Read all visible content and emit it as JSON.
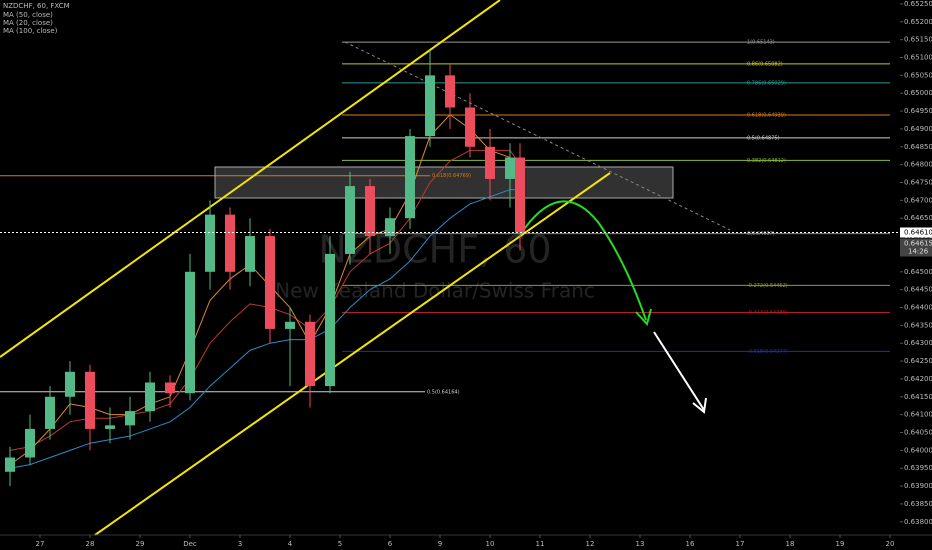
{
  "chart_data": {
    "type": "candlestick",
    "legend": [
      "NZDCHF, 60, FXCM",
      "MA (50, close)",
      "MA (20, close)",
      "MA (100, close)"
    ],
    "watermark": "NZDCHF, 60",
    "watermark_subtitle": "New Zealand Dollar/Swiss Franc",
    "x": [
      -0.6,
      -0.2,
      0.2,
      0.6,
      1.0,
      1.4,
      1.8,
      2.2,
      2.6,
      3.0,
      3.4,
      3.8,
      4.2,
      4.6,
      5.0,
      5.4,
      5.8,
      6.2,
      6.6,
      7.0,
      7.4,
      7.8,
      8.2,
      8.6,
      9.0,
      9.4,
      9.6
    ],
    "candles": {
      "open": [
        0.6394,
        0.6398,
        0.6406,
        0.6415,
        0.6422,
        0.6406,
        0.6407,
        0.6411,
        0.6419,
        0.6416,
        0.645,
        0.6466,
        0.645,
        0.646,
        0.6434,
        0.6436,
        0.6418,
        0.6455,
        0.6474,
        0.646,
        0.6465,
        0.6488,
        0.6505,
        0.6496,
        0.6485,
        0.6476,
        0.6482
      ],
      "high": [
        0.6401,
        0.641,
        0.6418,
        0.6425,
        0.6424,
        0.6412,
        0.6415,
        0.6422,
        0.6421,
        0.6455,
        0.647,
        0.6468,
        0.6465,
        0.6462,
        0.644,
        0.6438,
        0.646,
        0.6478,
        0.6476,
        0.6468,
        0.649,
        0.6512,
        0.6508,
        0.65,
        0.649,
        0.6486,
        0.6486
      ],
      "low": [
        0.639,
        0.6396,
        0.6403,
        0.641,
        0.64,
        0.6402,
        0.6403,
        0.6408,
        0.6412,
        0.6414,
        0.6445,
        0.6445,
        0.6446,
        0.643,
        0.6418,
        0.6412,
        0.6416,
        0.6452,
        0.6455,
        0.6455,
        0.6462,
        0.6485,
        0.649,
        0.6482,
        0.647,
        0.6468,
        0.6456
      ],
      "close": [
        0.6398,
        0.6406,
        0.6415,
        0.6422,
        0.6406,
        0.6407,
        0.6411,
        0.6419,
        0.6416,
        0.645,
        0.6466,
        0.645,
        0.646,
        0.6434,
        0.6436,
        0.6418,
        0.6455,
        0.6474,
        0.646,
        0.6465,
        0.6488,
        0.6505,
        0.6496,
        0.6485,
        0.6476,
        0.6482,
        0.6461
      ],
      "up_color": "#53b987",
      "down_color": "#eb4d5c"
    },
    "series": [
      {
        "name": "MA (50, close)",
        "color": "#c0392b",
        "values": [
          0.64,
          0.6401,
          0.6404,
          0.6408,
          0.6409,
          0.6409,
          0.641,
          0.6411,
          0.6413,
          0.642,
          0.643,
          0.6436,
          0.6441,
          0.644,
          0.6438,
          0.6434,
          0.644,
          0.645,
          0.6455,
          0.6458,
          0.6465,
          0.6475,
          0.6481,
          0.6484,
          0.6484,
          0.6484,
          0.648
        ]
      },
      {
        "name": "MA (20, close)",
        "color": "#e08a2c",
        "values": [
          0.6396,
          0.64,
          0.6406,
          0.6413,
          0.6412,
          0.641,
          0.641,
          0.6413,
          0.6415,
          0.6428,
          0.6442,
          0.6448,
          0.6452,
          0.6446,
          0.644,
          0.643,
          0.644,
          0.6455,
          0.646,
          0.6462,
          0.6472,
          0.6488,
          0.6494,
          0.649,
          0.6484,
          0.6482,
          0.6474
        ]
      },
      {
        "name": "MA (100, close)",
        "color": "#2a8cc8",
        "values": [
          0.6395,
          0.6396,
          0.6398,
          0.64,
          0.6402,
          0.6403,
          0.6404,
          0.6406,
          0.6408,
          0.6412,
          0.6418,
          0.6423,
          0.6428,
          0.643,
          0.6431,
          0.6431,
          0.6434,
          0.644,
          0.6445,
          0.6448,
          0.6453,
          0.646,
          0.6465,
          0.6469,
          0.6471,
          0.6473,
          0.6473
        ]
      }
    ],
    "fib_levels": [
      {
        "label": "1(0.65143)",
        "value": 0.65143,
        "color": "#9a9a9a"
      },
      {
        "label": "0.86(0.65082)",
        "value": 0.65082,
        "color": "#c8c81e"
      },
      {
        "label": "0.786(0.65029)",
        "value": 0.65029,
        "color": "#2a9d9d"
      },
      {
        "label": "0.618(0.64939)",
        "value": 0.64939,
        "color": "#d87a1a"
      },
      {
        "label": "0.5(0.64875)",
        "value": 0.64875,
        "color": "#cfcfcf"
      },
      {
        "label": "0.382(0.64812)",
        "value": 0.64812,
        "color": "#8bbb3a"
      },
      {
        "label": "0(0.64607)",
        "value": 0.64607,
        "color": "#8a8a8a"
      },
      {
        "label": "-0.272(0.64462)",
        "value": 0.64462,
        "color": "#9a9a20"
      },
      {
        "label": "-0.414(0.64386)",
        "value": 0.64386,
        "color": "#b02020"
      },
      {
        "label": "-0.618(0.64277)",
        "value": 0.64277,
        "color": "#2030a0"
      }
    ],
    "side_levels": [
      {
        "label": "0.618(0.64769)",
        "value": 0.64769,
        "color": "#d87a1a"
      },
      {
        "label": "0.5(0.64164)",
        "value": 0.64164,
        "color": "#cfcfcf"
      }
    ],
    "current_price": {
      "value": 0.6461,
      "label": "0.64610"
    },
    "bid_label": "0.64615",
    "countdown": "14:26",
    "xlim": [
      -0.8,
      17.2
    ],
    "xticks": [
      {
        "value": 0,
        "label": "27"
      },
      {
        "value": 1,
        "label": "28"
      },
      {
        "value": 2,
        "label": "29"
      },
      {
        "value": 3,
        "label": "Dec"
      },
      {
        "value": 4,
        "label": "3"
      },
      {
        "value": 5,
        "label": "4"
      },
      {
        "value": 6,
        "label": "5"
      },
      {
        "value": 7,
        "label": "6"
      },
      {
        "value": 8,
        "label": "9"
      },
      {
        "value": 9,
        "label": "10"
      },
      {
        "value": 10,
        "label": "11"
      },
      {
        "value": 11,
        "label": "12"
      },
      {
        "value": 12,
        "label": "13"
      },
      {
        "value": 13,
        "label": "16"
      },
      {
        "value": 14,
        "label": "17"
      },
      {
        "value": 15,
        "label": "18"
      },
      {
        "value": 16,
        "label": "19"
      },
      {
        "value": 17,
        "label": "20"
      }
    ],
    "ylim": [
      0.63763,
      0.65261
    ],
    "yticks": [
      {
        "value": 0.638,
        "label": "0.63800"
      },
      {
        "value": 0.6385,
        "label": "0.63850"
      },
      {
        "value": 0.639,
        "label": "0.63900"
      },
      {
        "value": 0.6395,
        "label": "0.63950"
      },
      {
        "value": 0.64,
        "label": "0.64000"
      },
      {
        "value": 0.6405,
        "label": "0.64050"
      },
      {
        "value": 0.641,
        "label": "0.64100"
      },
      {
        "value": 0.6415,
        "label": "0.64150"
      },
      {
        "value": 0.642,
        "label": "0.64200"
      },
      {
        "value": 0.6425,
        "label": "0.64250"
      },
      {
        "value": 0.643,
        "label": "0.64300"
      },
      {
        "value": 0.6435,
        "label": "0.64350"
      },
      {
        "value": 0.644,
        "label": "0.64400"
      },
      {
        "value": 0.6445,
        "label": "0.64450"
      },
      {
        "value": 0.645,
        "label": "0.64500"
      },
      {
        "value": 0.6455,
        "label": "0.64550"
      },
      {
        "value": 0.646,
        "label": "0.64600"
      },
      {
        "value": 0.6465,
        "label": "0.64650"
      },
      {
        "value": 0.647,
        "label": "0.64700"
      },
      {
        "value": 0.6475,
        "label": "0.64750"
      },
      {
        "value": 0.648,
        "label": "0.64800"
      },
      {
        "value": 0.6485,
        "label": "0.64850"
      },
      {
        "value": 0.649,
        "label": "0.64900"
      },
      {
        "value": 0.6495,
        "label": "0.64950"
      },
      {
        "value": 0.65,
        "label": "0.65000"
      },
      {
        "value": 0.6505,
        "label": "0.65050"
      },
      {
        "value": 0.651,
        "label": "0.65100"
      },
      {
        "value": 0.6515,
        "label": "0.65150"
      },
      {
        "value": 0.652,
        "label": "0.65200"
      },
      {
        "value": 0.6525,
        "label": "0.65250"
      }
    ]
  }
}
